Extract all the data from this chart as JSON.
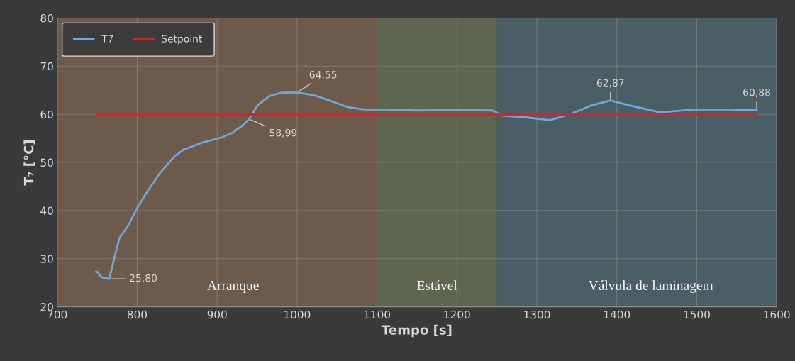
{
  "chart_data": {
    "type": "line",
    "xlabel": "Tempo [s]",
    "ylabel": "T₇ [°C]",
    "xlim": [
      700,
      1600
    ],
    "xticks": [
      700,
      800,
      900,
      1000,
      1100,
      1200,
      1300,
      1400,
      1500,
      1600
    ],
    "ylim": [
      20,
      80
    ],
    "yticks": [
      20,
      30,
      40,
      50,
      60,
      70,
      80
    ],
    "grid": true,
    "legend": "top left",
    "series": [
      {
        "name": "T7",
        "color": "#6fa8dc",
        "x": [
          748.6,
          750,
          755,
          765,
          771.5,
          777.6,
          789.8,
          799,
          809.7,
          828,
          846.4,
          858.6,
          883,
          907.4,
          919.7,
          931.9,
          940,
          950.2,
          965.5,
          980.7,
          1000,
          1020.5,
          1041.8,
          1063.2,
          1084.6,
          1112,
          1150,
          1200,
          1244.7,
          1257.9,
          1284,
          1316.8,
          1343,
          1369,
          1392,
          1414.9,
          1454,
          1496.8,
          1540,
          1575
        ],
        "values": [
          27.3,
          27.3,
          26.2,
          25.8,
          30.2,
          34.2,
          37.2,
          40.2,
          43.2,
          47.7,
          51.2,
          52.7,
          54.2,
          55.3,
          56.2,
          57.7,
          58.99,
          61.8,
          63.8,
          64.5,
          64.55,
          64,
          62.8,
          61.5,
          61,
          61,
          60.8,
          60.9,
          60.8,
          59.7,
          59.4,
          58.8,
          60.1,
          61.9,
          62.87,
          61.9,
          60.4,
          61,
          61,
          60.88
        ]
      },
      {
        "name": "Setpoint",
        "color": "#e02020",
        "x": [
          750,
          1575
        ],
        "values": [
          60,
          60
        ]
      }
    ],
    "bands": [
      {
        "axis": "x",
        "from": 700,
        "to": 1100,
        "label": "Arranque",
        "color": "#6e5a4a"
      },
      {
        "axis": "x",
        "from": 1100,
        "to": 1250,
        "label": "Estável",
        "color": "#5e6650"
      },
      {
        "axis": "x",
        "from": 1250,
        "to": 1600,
        "label": "Válvula de laminagem",
        "color": "#4a5e66"
      }
    ],
    "annotations": [
      {
        "text": "25,80",
        "x": 765,
        "y": 25.8
      },
      {
        "text": "58,99",
        "x": 940,
        "y": 58.99
      },
      {
        "text": "64,55",
        "x": 1000,
        "y": 64.55
      },
      {
        "text": "62,87",
        "x": 1392,
        "y": 62.87
      },
      {
        "text": "60,88",
        "x": 1575,
        "y": 60.88
      }
    ]
  }
}
